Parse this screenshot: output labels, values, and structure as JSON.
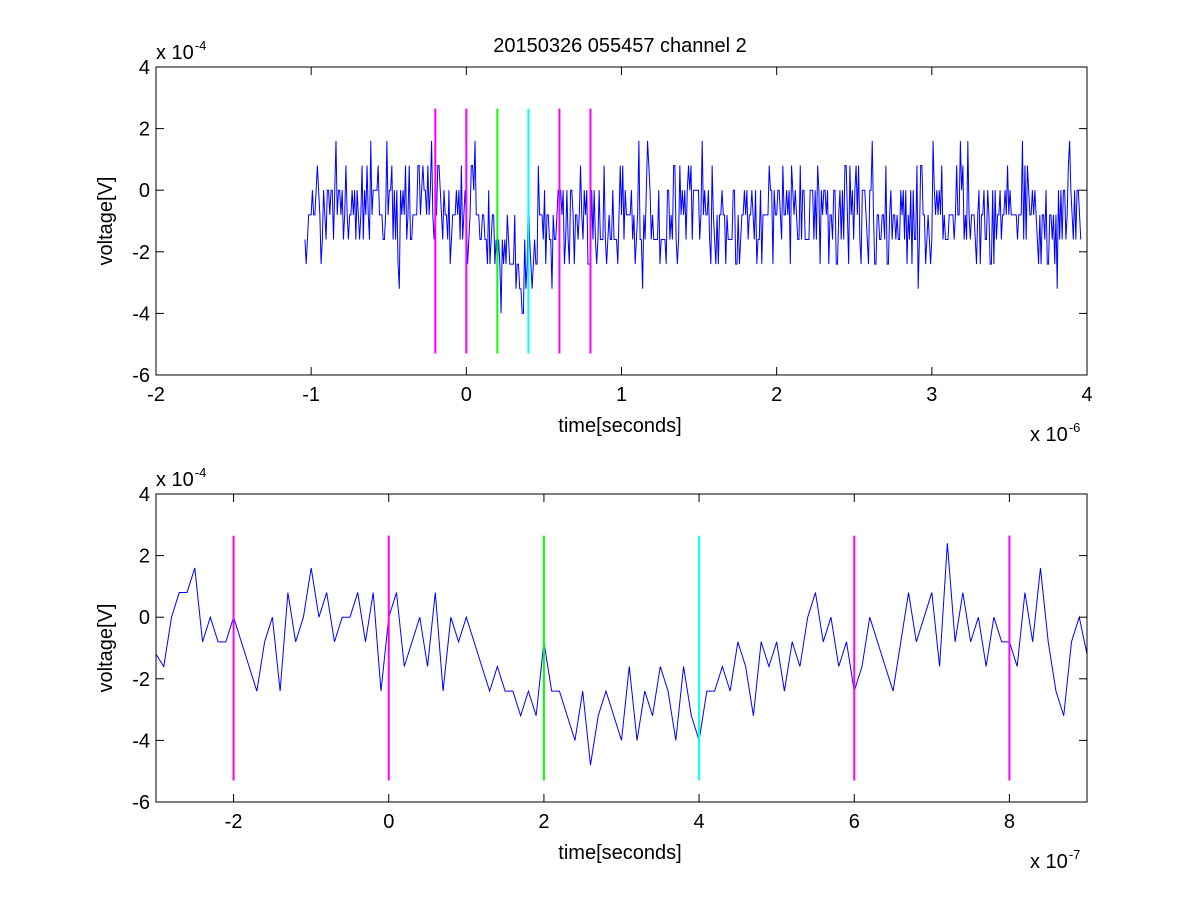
{
  "title": "20150326 055457 channel 2",
  "chart_data": [
    {
      "type": "line",
      "title": "20150326 055457 channel 2",
      "xlabel": "time[seconds]",
      "ylabel": "voltage[V]",
      "x_exponent_label": "x 10",
      "x_exponent": "-6",
      "y_exponent_label": "x 10",
      "y_exponent": "-4",
      "xlim": [
        -2,
        4
      ],
      "ylim": [
        -6,
        4
      ],
      "x_ticks": [
        -2,
        -1,
        0,
        1,
        2,
        3,
        4
      ],
      "y_ticks": [
        -6,
        -4,
        -2,
        0,
        2,
        4
      ],
      "x_tick_labels": [
        "-2",
        "-1",
        "0",
        "1",
        "2",
        "3",
        "4"
      ],
      "y_tick_labels": [
        "-6",
        "-4",
        "-2",
        "0",
        "2",
        "4"
      ],
      "grid": false,
      "series": [
        {
          "color": "#0000ff",
          "x_range": [
            -1.04,
            3.96
          ],
          "x_step": 0.008,
          "y_levels": [
            2.4,
            1.6,
            0.8,
            0,
            -0.8,
            -1.6,
            -2.4,
            -3.2,
            -4.0,
            -4.8
          ],
          "trend": [
            [
              -1.04,
              -0.5
            ],
            [
              -0.3,
              -0.5
            ],
            [
              0.1,
              -0.8
            ],
            [
              0.2,
              -2.2
            ],
            [
              0.4,
              -2.6
            ],
            [
              0.5,
              -1.2
            ],
            [
              0.7,
              -0.8
            ],
            [
              1.2,
              -0.8
            ],
            [
              3.96,
              -0.8
            ]
          ]
        }
      ],
      "vlines": [
        {
          "x": -0.2,
          "color": "#ff00ff"
        },
        {
          "x": 0.0,
          "color": "#ff00ff"
        },
        {
          "x": 0.2,
          "color": "#00ff00"
        },
        {
          "x": 0.4,
          "color": "#00ffff"
        },
        {
          "x": 0.6,
          "color": "#ff00ff"
        },
        {
          "x": 0.8,
          "color": "#ff00ff"
        }
      ],
      "vline_y_range": [
        -5.3,
        2.65
      ]
    },
    {
      "type": "line",
      "title": "",
      "xlabel": "time[seconds]",
      "ylabel": "voltage[V]",
      "x_exponent_label": "x 10",
      "x_exponent": "-7",
      "y_exponent_label": "x 10",
      "y_exponent": "-4",
      "xlim": [
        -3,
        9
      ],
      "ylim": [
        -6,
        4
      ],
      "x_ticks": [
        -2,
        0,
        2,
        4,
        6,
        8
      ],
      "y_ticks": [
        -6,
        -4,
        -2,
        0,
        2,
        4
      ],
      "x_tick_labels": [
        "-2",
        "0",
        "2",
        "4",
        "6",
        "8"
      ],
      "y_tick_labels": [
        "-6",
        "-4",
        "-2",
        "0",
        "2",
        "4"
      ],
      "grid": false,
      "series": [
        {
          "color": "#0000ff",
          "x": [
            -3.0,
            -2.9,
            -2.8,
            -2.7,
            -2.6,
            -2.5,
            -2.4,
            -2.3,
            -2.2,
            -2.1,
            -2.0,
            -1.9,
            -1.8,
            -1.7,
            -1.6,
            -1.5,
            -1.4,
            -1.3,
            -1.2,
            -1.1,
            -1.0,
            -0.9,
            -0.8,
            -0.7,
            -0.6,
            -0.5,
            -0.4,
            -0.3,
            -0.2,
            -0.1,
            0.0,
            0.1,
            0.2,
            0.3,
            0.4,
            0.5,
            0.6,
            0.7,
            0.8,
            0.9,
            1.0,
            1.1,
            1.2,
            1.3,
            1.4,
            1.5,
            1.6,
            1.7,
            1.8,
            1.9,
            2.0,
            2.1,
            2.2,
            2.3,
            2.4,
            2.5,
            2.6,
            2.7,
            2.8,
            2.9,
            3.0,
            3.1,
            3.2,
            3.3,
            3.4,
            3.5,
            3.6,
            3.7,
            3.8,
            3.9,
            4.0,
            4.1,
            4.2,
            4.3,
            4.4,
            4.5,
            4.6,
            4.7,
            4.8,
            4.9,
            5.0,
            5.1,
            5.2,
            5.3,
            5.4,
            5.5,
            5.6,
            5.7,
            5.8,
            5.9,
            6.0,
            6.1,
            6.2,
            6.3,
            6.4,
            6.5,
            6.6,
            6.7,
            6.8,
            6.9,
            7.0,
            7.1,
            7.2,
            7.3,
            7.4,
            7.5,
            7.6,
            7.7,
            7.8,
            7.9,
            8.0,
            8.1,
            8.2,
            8.3,
            8.4,
            8.5,
            8.6,
            8.7,
            8.8,
            8.9,
            9.0
          ],
          "y": [
            -1.2,
            -1.6,
            0.0,
            0.8,
            0.8,
            1.6,
            -0.8,
            0.0,
            -0.8,
            -0.8,
            0.0,
            -0.8,
            -1.6,
            -2.4,
            -0.8,
            0.0,
            -2.4,
            0.8,
            -0.8,
            0.0,
            1.6,
            0.0,
            0.8,
            -0.8,
            0.0,
            0.0,
            0.8,
            -0.8,
            0.8,
            -2.4,
            0.0,
            0.8,
            -1.6,
            -0.8,
            0.0,
            -1.6,
            0.8,
            -2.4,
            0.0,
            -0.8,
            0.0,
            -0.8,
            -1.6,
            -2.4,
            -1.6,
            -2.4,
            -2.4,
            -3.2,
            -2.4,
            -3.2,
            -0.8,
            -2.4,
            -2.4,
            -3.2,
            -4.0,
            -2.4,
            -4.8,
            -3.2,
            -2.4,
            -3.2,
            -4.0,
            -1.6,
            -4.0,
            -2.4,
            -3.2,
            -1.6,
            -2.4,
            -4.0,
            -1.6,
            -3.2,
            -4.0,
            -2.4,
            -2.4,
            -1.6,
            -2.4,
            -0.8,
            -1.6,
            -3.2,
            -0.8,
            -1.6,
            -0.8,
            -2.4,
            -0.8,
            -1.6,
            0.0,
            0.8,
            -0.8,
            0.0,
            -1.6,
            -0.8,
            -2.4,
            -1.6,
            0.0,
            -0.8,
            -1.6,
            -2.4,
            -0.8,
            0.8,
            -0.8,
            0.0,
            0.8,
            -1.6,
            2.4,
            -0.8,
            0.8,
            -0.8,
            0.0,
            -1.6,
            0.0,
            -0.8,
            -0.8,
            -1.6,
            0.8,
            -0.8,
            1.6,
            -0.8,
            -2.4,
            -3.2,
            -0.8,
            0.0,
            -1.2
          ]
        }
      ],
      "vlines": [
        {
          "x": -2,
          "color": "#ff00ff"
        },
        {
          "x": 0,
          "color": "#ff00ff"
        },
        {
          "x": 2,
          "color": "#00ff00"
        },
        {
          "x": 4,
          "color": "#00ffff"
        },
        {
          "x": 6,
          "color": "#ff00ff"
        },
        {
          "x": 8,
          "color": "#ff00ff"
        }
      ],
      "vline_y_range": [
        -5.3,
        2.65
      ]
    }
  ]
}
